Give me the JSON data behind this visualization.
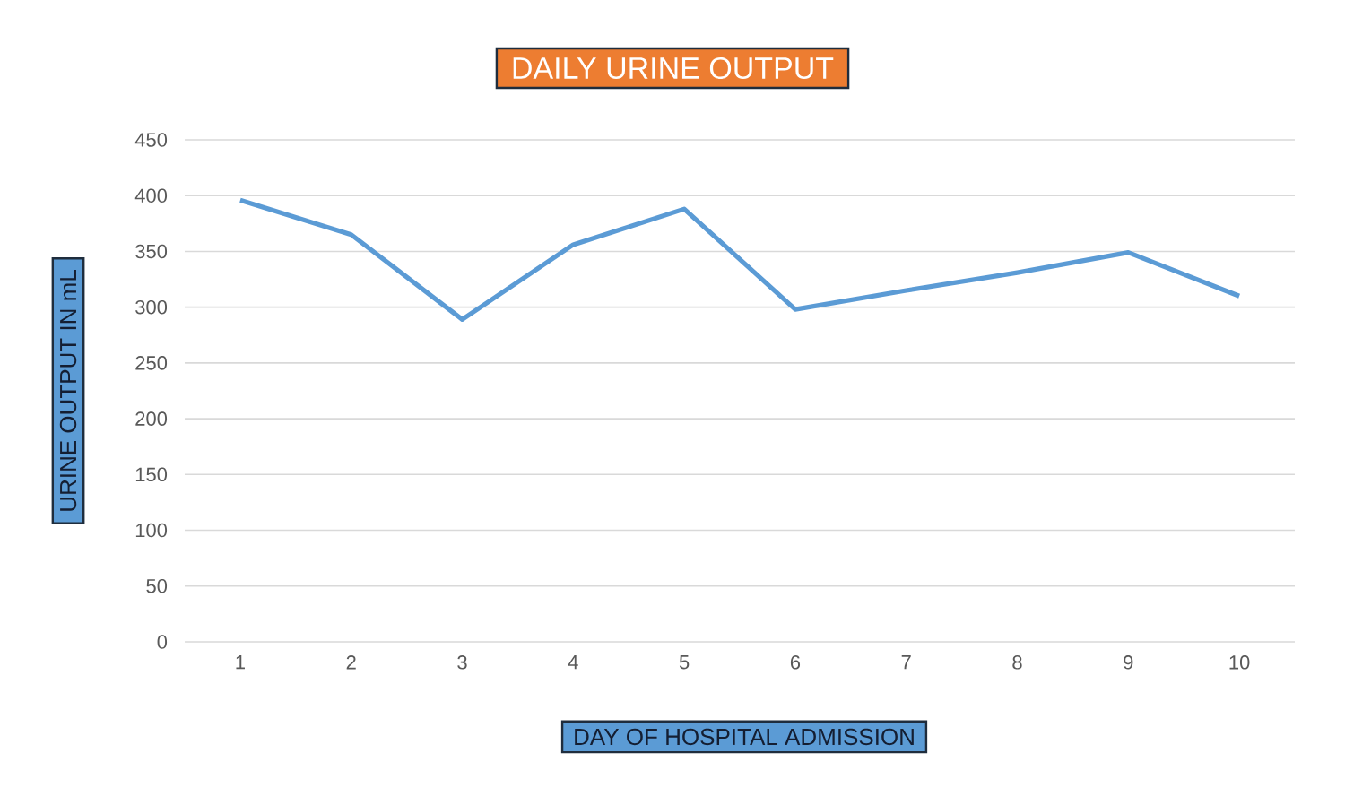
{
  "chart_data": {
    "type": "line",
    "title": "DAILY URINE OUTPUT",
    "xlabel": "DAY OF HOSPITAL ADMISSION",
    "ylabel": "URINE OUTPUT IN mL",
    "categories": [
      "1",
      "2",
      "3",
      "4",
      "5",
      "6",
      "7",
      "8",
      "9",
      "10"
    ],
    "values": [
      396,
      365,
      289,
      356,
      388,
      298,
      315,
      331,
      349,
      310
    ],
    "color": "#5b9bd5",
    "ylim": [
      0,
      450
    ],
    "yticks": [
      0,
      50,
      100,
      150,
      200,
      250,
      300,
      350,
      400,
      450
    ],
    "grid": "y"
  }
}
